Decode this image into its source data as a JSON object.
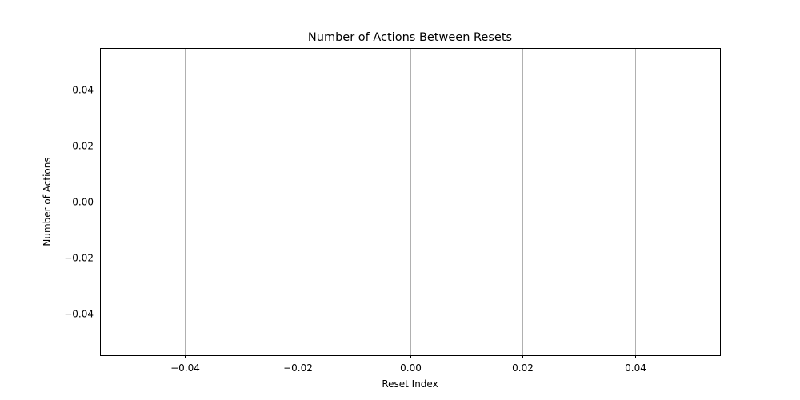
{
  "chart_data": {
    "type": "line",
    "title": "Number of Actions Between Resets",
    "xlabel": "Reset Index",
    "ylabel": "Number of Actions",
    "xlim": [
      -0.055,
      0.055
    ],
    "ylim": [
      -0.055,
      0.055
    ],
    "x_ticks": [
      -0.04,
      -0.02,
      0.0,
      0.02,
      0.04
    ],
    "x_tick_labels": [
      "−0.04",
      "−0.02",
      "0.00",
      "0.02",
      "0.04"
    ],
    "y_ticks": [
      0.04,
      0.02,
      0.0,
      -0.02,
      -0.04
    ],
    "y_tick_labels": [
      "0.04",
      "0.02",
      "0.00",
      "−0.02",
      "−0.04"
    ],
    "grid": true,
    "series": [
      {
        "x": [],
        "y": []
      }
    ],
    "colors": {
      "grid": "#b0b0b0",
      "axis": "#000000"
    }
  }
}
